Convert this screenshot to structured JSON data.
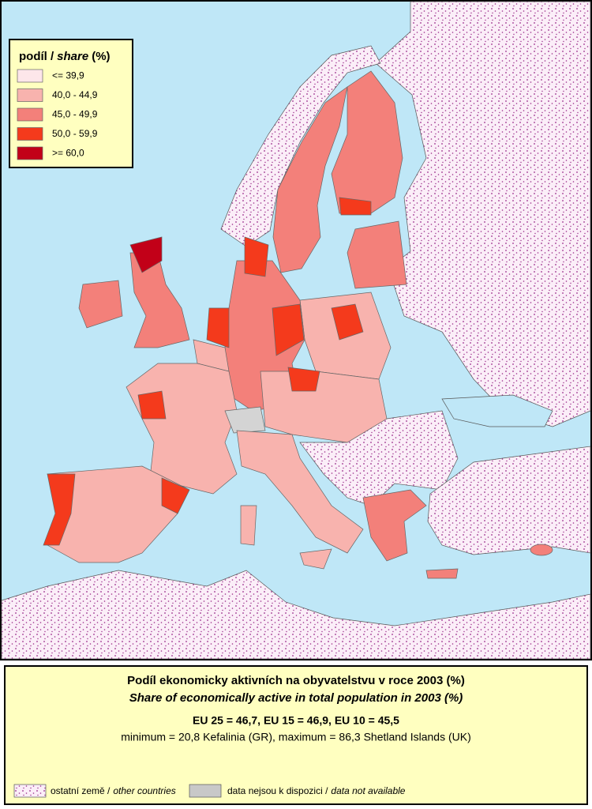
{
  "legend": {
    "title_parts": [
      "podíl /",
      "share",
      "(%)"
    ],
    "items": [
      {
        "label": "<= 39,9",
        "color": "#fde6ea"
      },
      {
        "label": "40,0 - 44,9",
        "color": "#f8b3ae"
      },
      {
        "label": "45,0 - 49,9",
        "color": "#f3807a"
      },
      {
        "label": "50,0 - 59,9",
        "color": "#f43a1c"
      },
      {
        "label": ">= 60,0",
        "color": "#c20018"
      }
    ]
  },
  "caption": {
    "title_cs": "Podíl ekonomicky aktivních na obyvatelstvu v roce 2003 (%)",
    "title_en": "Share of economically active in total population in 2003 (%)",
    "averages": "EU 25 = 46,7, EU 15 = 46,9, EU 10 = 45,5",
    "extremes": "minimum  = 20,8 Kefalinia (GR), maximum = 86,3 Shetland Islands (UK)"
  },
  "footer": {
    "other_countries": [
      "ostatní země /",
      "other countries"
    ],
    "not_available": [
      "data nejsou k dispozici /",
      "data not available"
    ]
  }
}
